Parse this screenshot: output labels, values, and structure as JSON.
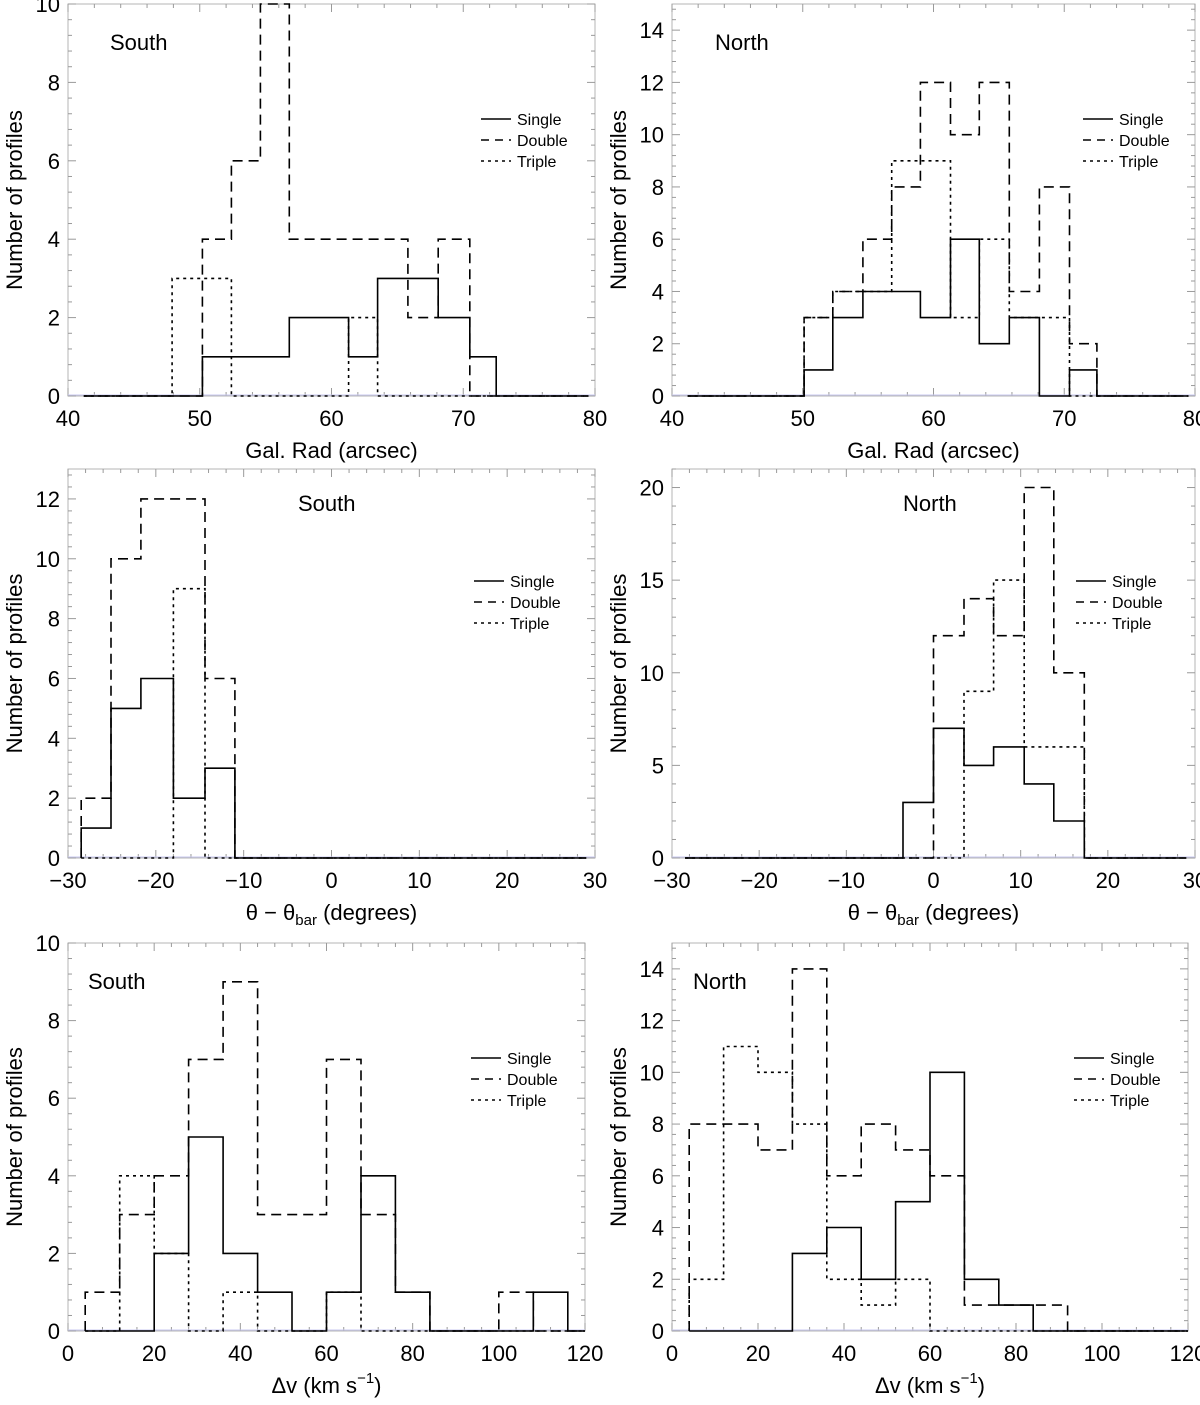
{
  "chart_data": [
    {
      "type": "histogram",
      "title": "South",
      "xlabel": "Gal. Rad (arcsec)",
      "ylabel": "Number of profiles",
      "xlim": [
        40,
        80
      ],
      "ylim": [
        0,
        10
      ],
      "xticks": [
        40,
        50,
        60,
        70,
        80
      ],
      "yticks": [
        0,
        2,
        4,
        6,
        8,
        10
      ],
      "legend": [
        "Single",
        "Double",
        "Triple"
      ],
      "series": [
        {
          "name": "Single",
          "style": "solid",
          "x": [
            41.2,
            50.2,
            56.8,
            61.3,
            63.5,
            68.1,
            70.5,
            72.5,
            79.5
          ],
          "y": [
            0,
            1,
            2,
            1,
            3,
            2,
            1,
            0
          ]
        },
        {
          "name": "Double",
          "style": "dashed",
          "x": [
            41.2,
            50.2,
            52.4,
            54.6,
            56.8,
            65.8,
            68.1,
            70.5,
            79.5
          ],
          "y": [
            0,
            4,
            6,
            10,
            4,
            2,
            4,
            0
          ]
        },
        {
          "name": "Triple",
          "style": "dotted",
          "x": [
            41.2,
            47.9,
            52.4,
            61.3,
            63.5,
            79.5
          ],
          "y": [
            0,
            3,
            0,
            2,
            0
          ]
        }
      ]
    },
    {
      "type": "histogram",
      "title": "North",
      "xlabel": "Gal. Rad (arcsec)",
      "ylabel": "Number of profiles",
      "xlim": [
        40,
        80
      ],
      "ylim": [
        0,
        15
      ],
      "xticks": [
        40,
        50,
        60,
        70,
        80
      ],
      "yticks": [
        0,
        2,
        4,
        6,
        8,
        10,
        12,
        14
      ],
      "legend": [
        "Single",
        "Double",
        "Triple"
      ],
      "series": [
        {
          "name": "Single",
          "style": "solid",
          "x": [
            41.2,
            50.1,
            52.3,
            54.6,
            56.8,
            59.0,
            61.3,
            63.5,
            65.8,
            68.1,
            70.4,
            72.5,
            79.5
          ],
          "y": [
            0,
            1,
            3,
            4,
            4,
            3,
            6,
            2,
            3,
            0,
            1,
            0
          ]
        },
        {
          "name": "Double",
          "style": "dashed",
          "x": [
            41.2,
            50.1,
            52.3,
            54.6,
            56.8,
            59.0,
            61.3,
            63.5,
            65.8,
            68.1,
            70.4,
            72.5,
            79.5
          ],
          "y": [
            0,
            3,
            4,
            6,
            8,
            12,
            10,
            12,
            4,
            8,
            2,
            0
          ]
        },
        {
          "name": "Triple",
          "style": "dotted",
          "x": [
            41.2,
            50.1,
            52.3,
            56.8,
            61.3,
            63.5,
            65.8,
            70.4,
            79.5
          ],
          "y": [
            0,
            3,
            4,
            9,
            3,
            6,
            3,
            0
          ]
        }
      ]
    },
    {
      "type": "histogram",
      "title": "South",
      "xlabel": "θ − θ",
      "xlabel_sub": "bar",
      "xlabel_unit": " (degrees)",
      "ylabel": "Number of profiles",
      "xlim": [
        -30,
        30
      ],
      "ylim": [
        0,
        13
      ],
      "xticks": [
        -30,
        -20,
        -10,
        0,
        10,
        20,
        30
      ],
      "yticks": [
        0,
        2,
        4,
        6,
        8,
        10,
        12
      ],
      "xtick_labels": [
        "−30",
        "−20",
        "−10",
        "0",
        "10",
        "20",
        "30"
      ],
      "legend": [
        "Single",
        "Double",
        "Triple"
      ],
      "series": [
        {
          "name": "Single",
          "style": "solid",
          "x": [
            -28.5,
            -25.1,
            -21.7,
            -18.0,
            -14.4,
            -11.0,
            29.0
          ],
          "y": [
            1,
            5,
            6,
            2,
            3,
            0
          ]
        },
        {
          "name": "Double",
          "style": "dashed",
          "x": [
            -28.5,
            -25.1,
            -21.7,
            -18.0,
            -14.4,
            -11.0,
            29.0
          ],
          "y": [
            2,
            10,
            12,
            12,
            6,
            0
          ]
        },
        {
          "name": "Triple",
          "style": "dotted",
          "x": [
            -28.5,
            -18.0,
            -14.4,
            29.0
          ],
          "y": [
            0,
            9,
            0
          ]
        }
      ]
    },
    {
      "type": "histogram",
      "title": "North",
      "xlabel": "θ − θ",
      "xlabel_sub": "bar",
      "xlabel_unit": " (degrees)",
      "ylabel": "Number of profiles",
      "xlim": [
        -30,
        30
      ],
      "ylim": [
        0,
        21
      ],
      "xticks": [
        -30,
        -20,
        -10,
        0,
        10,
        20,
        30
      ],
      "yticks": [
        0,
        5,
        10,
        15,
        20
      ],
      "xtick_labels": [
        "−30",
        "−20",
        "−10",
        "0",
        "10",
        "20",
        "30"
      ],
      "legend": [
        "Single",
        "Double",
        "Triple"
      ],
      "series": [
        {
          "name": "Single",
          "style": "solid",
          "x": [
            -28.5,
            -3.5,
            0.0,
            3.5,
            6.9,
            10.4,
            13.8,
            17.3,
            29.0
          ],
          "y": [
            0,
            3,
            7,
            5,
            6,
            4,
            2,
            0
          ]
        },
        {
          "name": "Double",
          "style": "dashed",
          "x": [
            -28.5,
            0.0,
            3.5,
            6.9,
            10.4,
            13.8,
            17.3,
            29.0
          ],
          "y": [
            0,
            12,
            14,
            12,
            20,
            10,
            0
          ]
        },
        {
          "name": "Triple",
          "style": "dotted",
          "x": [
            -28.5,
            3.5,
            6.9,
            10.4,
            17.3,
            29.0
          ],
          "y": [
            0,
            9,
            15,
            6,
            0
          ]
        }
      ]
    },
    {
      "type": "histogram",
      "title": "South",
      "xlabel": "Δv (km s",
      "xlabel_sup": "−1",
      "xlabel_tail": ")",
      "ylabel": "Number of profiles",
      "xlim": [
        0,
        120
      ],
      "ylim": [
        0,
        10
      ],
      "xticks": [
        0,
        20,
        40,
        60,
        80,
        100,
        120
      ],
      "yticks": [
        0,
        2,
        4,
        6,
        8,
        10
      ],
      "legend": [
        "Single",
        "Double",
        "Triple"
      ],
      "series": [
        {
          "name": "Single",
          "style": "solid",
          "x": [
            4,
            20,
            28,
            36,
            44,
            52,
            60,
            68,
            76,
            84,
            108,
            116,
            120
          ],
          "y": [
            0,
            2,
            5,
            2,
            1,
            0,
            1,
            4,
            1,
            0,
            1,
            0
          ]
        },
        {
          "name": "Double",
          "style": "dashed",
          "x": [
            4,
            12,
            20,
            28,
            36,
            44,
            60,
            68,
            76,
            84,
            100,
            108,
            120
          ],
          "y": [
            1,
            3,
            4,
            7,
            9,
            3,
            7,
            3,
            1,
            0,
            1,
            0
          ]
        },
        {
          "name": "Triple",
          "style": "dotted",
          "x": [
            4,
            12,
            20,
            28,
            36,
            44,
            60,
            68,
            120
          ],
          "y": [
            0,
            4,
            2,
            0,
            1,
            0,
            1,
            0
          ]
        }
      ]
    },
    {
      "type": "histogram",
      "title": "North",
      "xlabel": "Δv (km s",
      "xlabel_sup": "−1",
      "xlabel_tail": ")",
      "ylabel": "Number of profiles",
      "xlim": [
        0,
        120
      ],
      "ylim": [
        0,
        15
      ],
      "xticks": [
        0,
        20,
        40,
        60,
        80,
        100,
        120
      ],
      "yticks": [
        0,
        2,
        4,
        6,
        8,
        10,
        12,
        14
      ],
      "legend": [
        "Single",
        "Double",
        "Triple"
      ],
      "series": [
        {
          "name": "Single",
          "style": "solid",
          "x": [
            4,
            28,
            36,
            44,
            52,
            60,
            68,
            76,
            84,
            120
          ],
          "y": [
            0,
            3,
            4,
            2,
            5,
            10,
            2,
            1,
            0
          ]
        },
        {
          "name": "Double",
          "style": "dashed",
          "x": [
            4,
            20,
            28,
            36,
            44,
            52,
            60,
            68,
            76,
            92,
            120
          ],
          "y": [
            8,
            7,
            14,
            6,
            8,
            7,
            6,
            1,
            1,
            0
          ]
        },
        {
          "name": "Triple",
          "style": "dotted",
          "x": [
            4,
            12,
            20,
            28,
            36,
            44,
            52,
            60,
            120
          ],
          "y": [
            2,
            11,
            10,
            8,
            2,
            1,
            2,
            0
          ]
        }
      ]
    }
  ]
}
